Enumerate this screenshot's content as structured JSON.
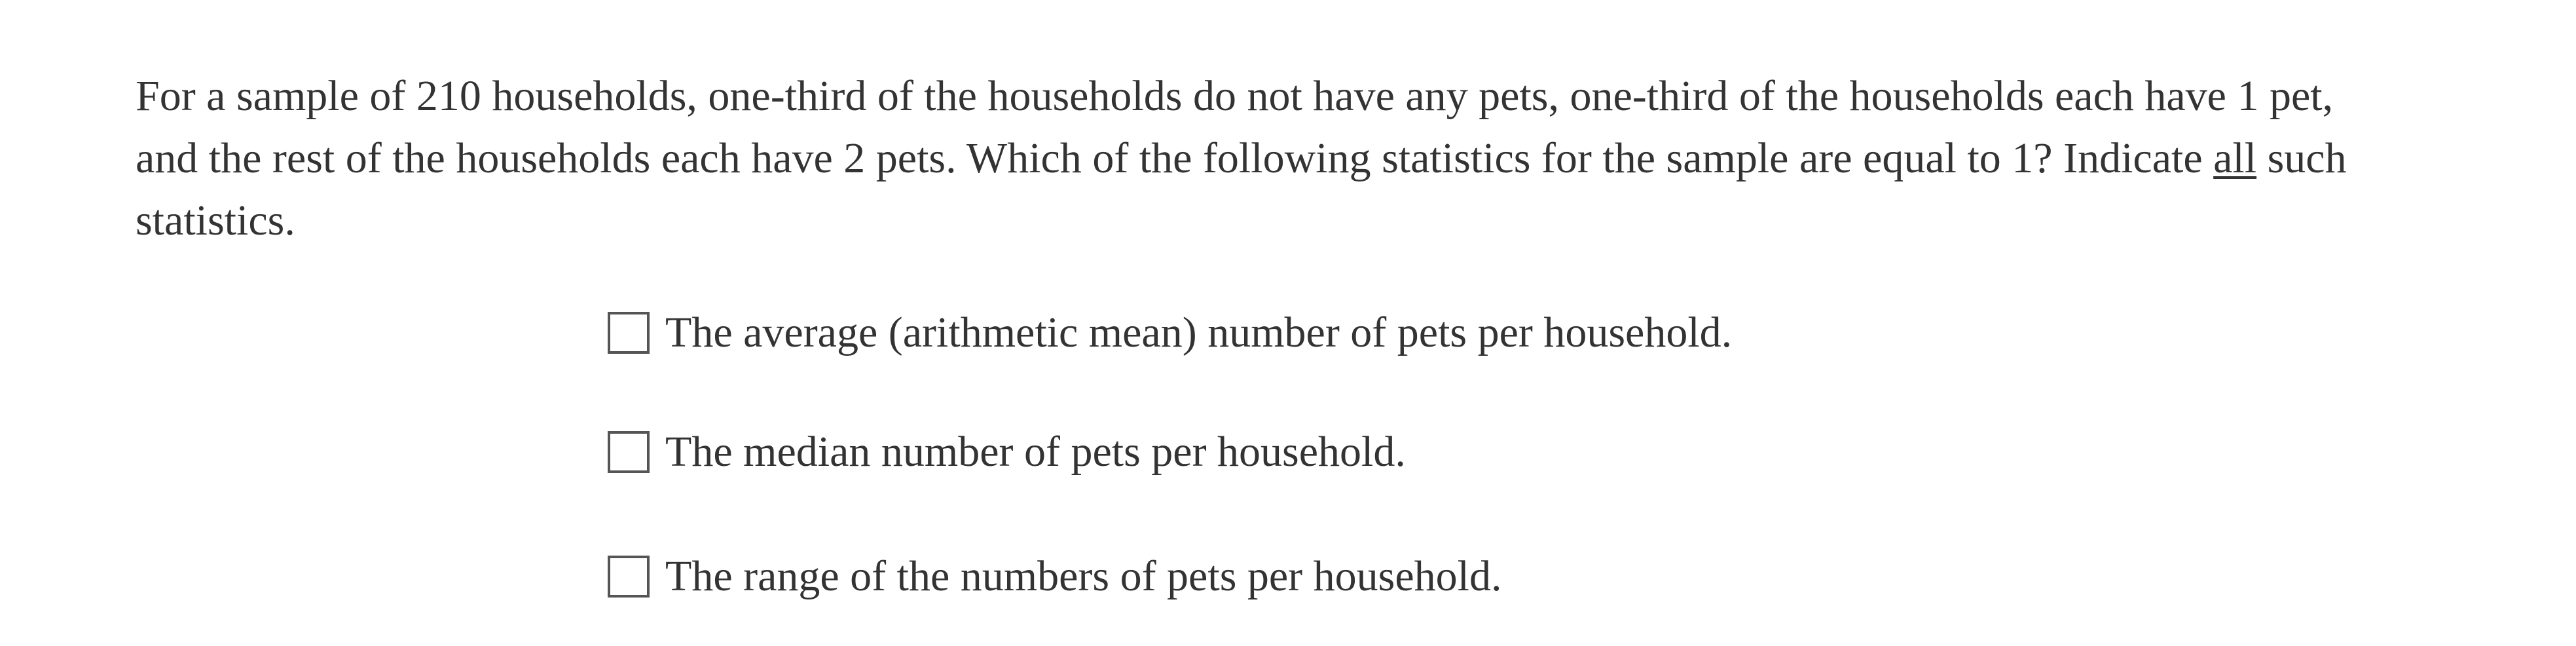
{
  "question": {
    "lines": [
      "For a sample of 210 households, one-third of the households do not have any pets, one-third of the households each have 1 pet,",
      {
        "before": "and the rest of the households each have 2 pets. Which of the following statistics for the sample are equal to 1? Indicate ",
        "underlined": "all",
        "after": " such"
      },
      "statistics."
    ]
  },
  "options": [
    {
      "label": "The average (arithmetic mean) number of pets per household.",
      "checked": false,
      "icon": "checkbox-empty"
    },
    {
      "label": "The median number of pets per household.",
      "checked": false,
      "icon": "checkbox-empty"
    },
    {
      "label": "The range of the numbers of pets per household.",
      "checked": false,
      "icon": "checkbox-empty"
    }
  ]
}
